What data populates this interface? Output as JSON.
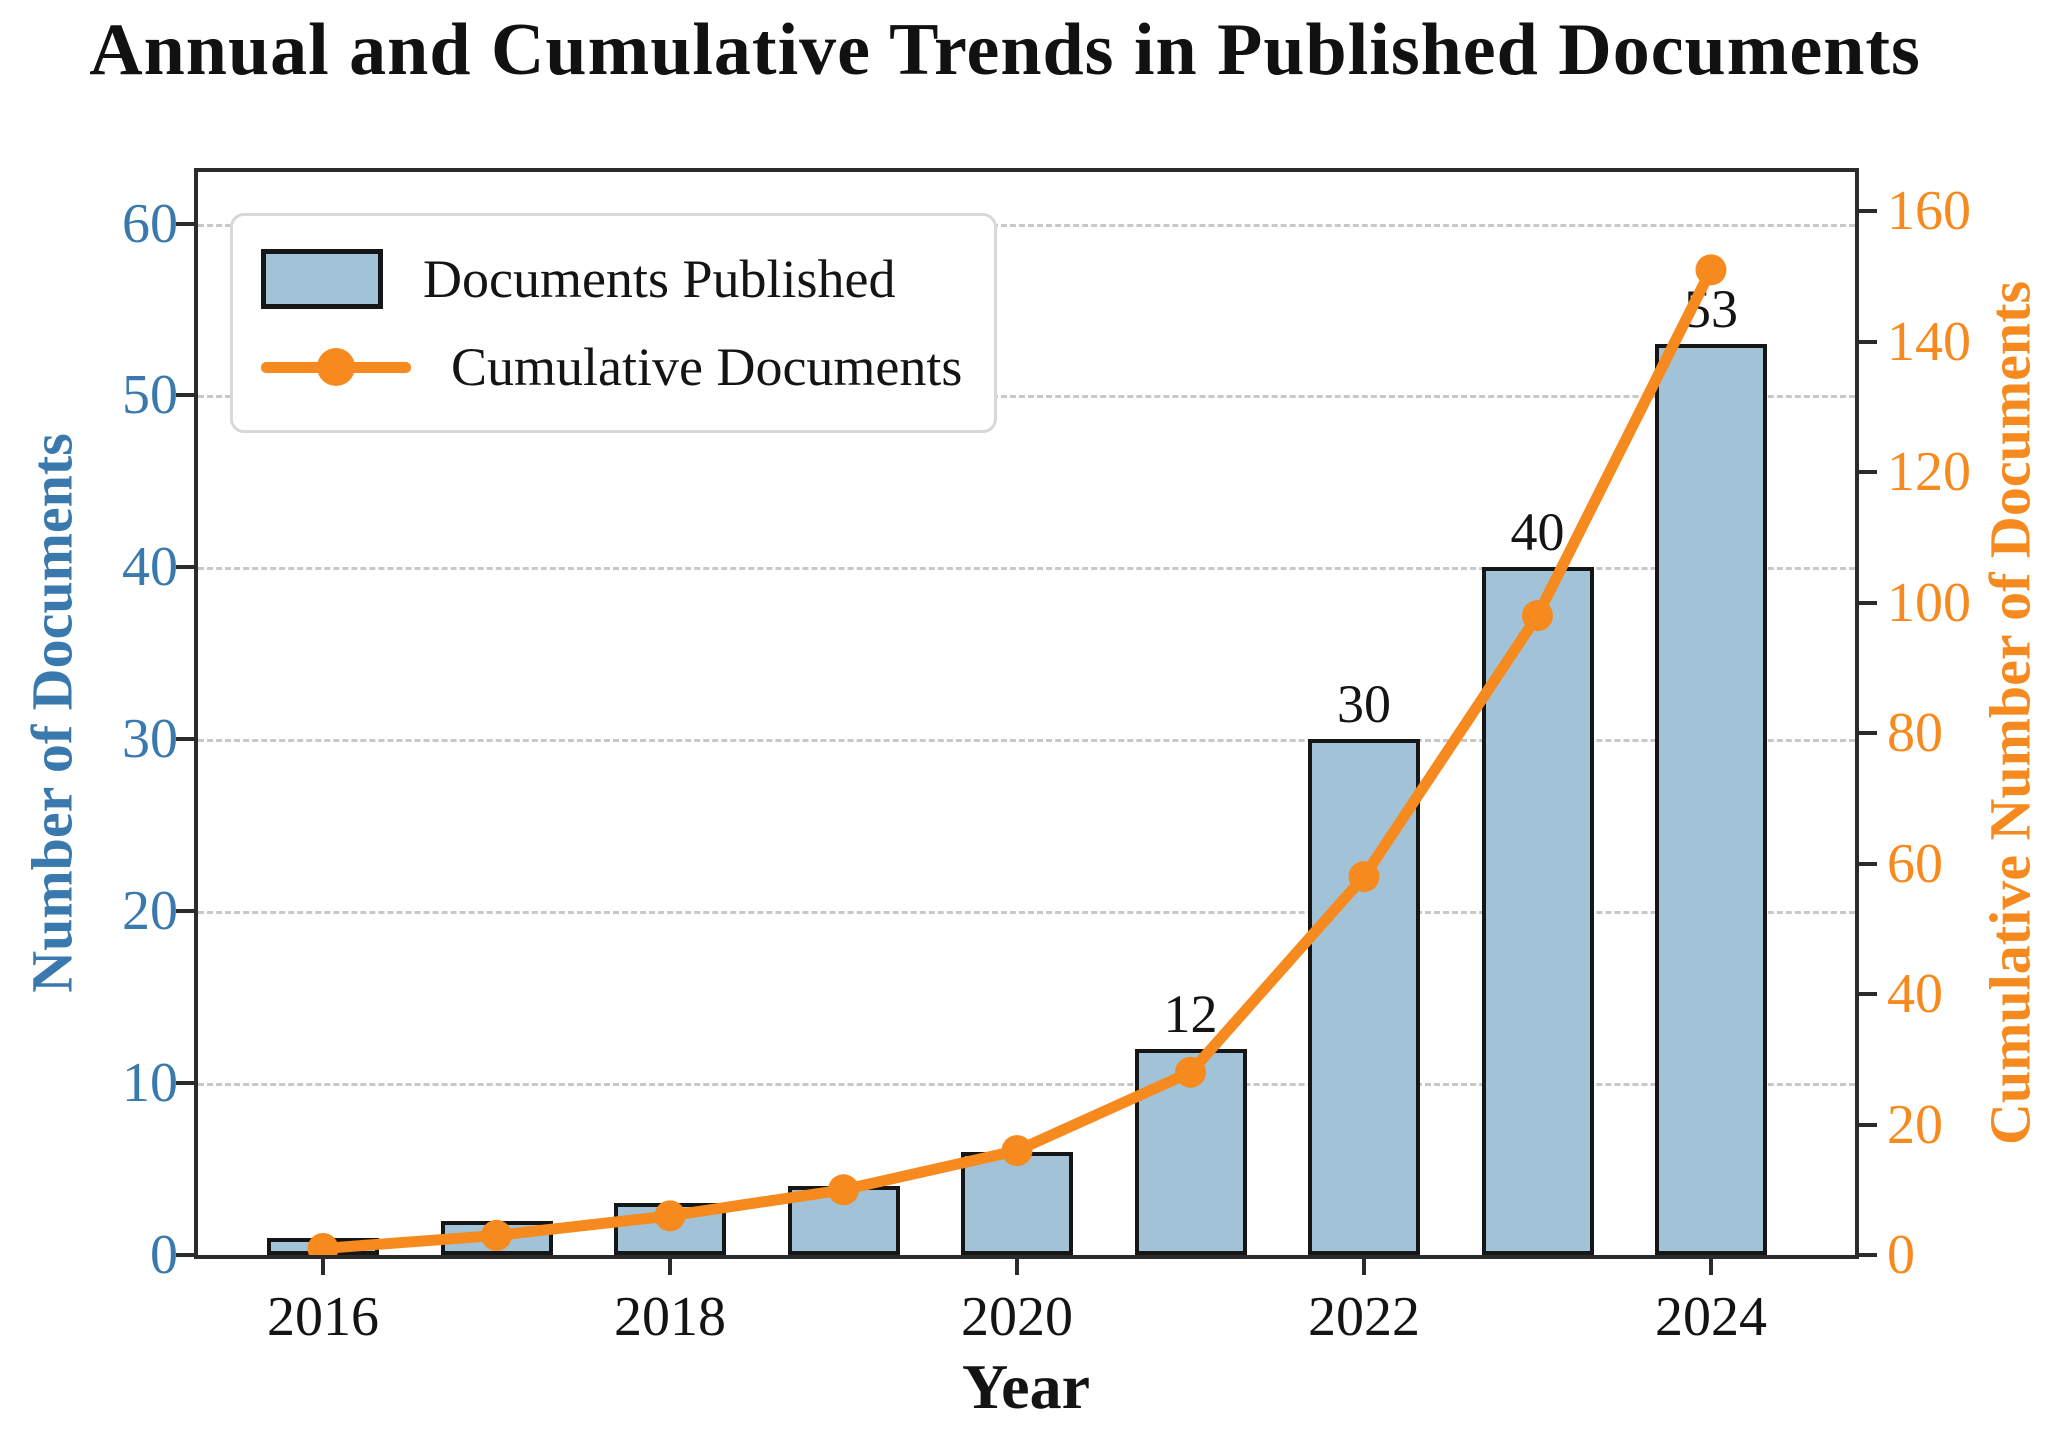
{
  "title": "Annual and Cumulative Trends in Published Documents",
  "legend": {
    "items": [
      {
        "label": "Documents Published",
        "type": "bar"
      },
      {
        "label": "Cumulative Documents",
        "type": "line"
      }
    ]
  },
  "axes": {
    "x": {
      "label": "Year",
      "tick_labels": [
        2016,
        2018,
        2020,
        2022,
        2024
      ]
    },
    "left": {
      "label": "Number of Documents",
      "ticks": [
        0,
        10,
        20,
        30,
        40,
        50,
        60
      ],
      "max": 63
    },
    "right": {
      "label": "Cumulative Number of Documents",
      "ticks": [
        0,
        20,
        40,
        60,
        80,
        100,
        120,
        140,
        160
      ],
      "max": 166
    }
  },
  "chart_data": {
    "type": "bar+line",
    "title": "Annual and Cumulative Trends in Published Documents",
    "xlabel": "Year",
    "ylabel_left": "Number of Documents",
    "ylabel_right": "Cumulative Number of Documents",
    "categories": [
      2016,
      2017,
      2018,
      2019,
      2020,
      2021,
      2022,
      2023,
      2024
    ],
    "series": [
      {
        "name": "Documents Published",
        "type": "bar",
        "axis": "left",
        "values": [
          1,
          2,
          3,
          4,
          6,
          12,
          30,
          40,
          53
        ]
      },
      {
        "name": "Cumulative Documents",
        "type": "line",
        "axis": "right",
        "values": [
          1,
          3,
          6,
          10,
          16,
          28,
          58,
          98,
          151
        ]
      }
    ],
    "bar_value_labels": [
      {
        "year": 2021,
        "text": "12"
      },
      {
        "year": 2022,
        "text": "30"
      },
      {
        "year": 2023,
        "text": "40"
      },
      {
        "year": 2024,
        "text": "53"
      }
    ],
    "ylim_left": [
      0,
      63
    ],
    "ylim_right": [
      0,
      166
    ],
    "grid": "horizontal-dashed",
    "legend_position": "upper-left"
  },
  "colors": {
    "bar_fill": "#a2c2d8",
    "bar_edge": "#161616",
    "line": "#f68a1e",
    "left_axis_text": "#3a79ad",
    "right_axis_text": "#f68a1e",
    "grid": "#c8c8c8",
    "spine": "#2b2b2b",
    "annotation": "#141414"
  }
}
